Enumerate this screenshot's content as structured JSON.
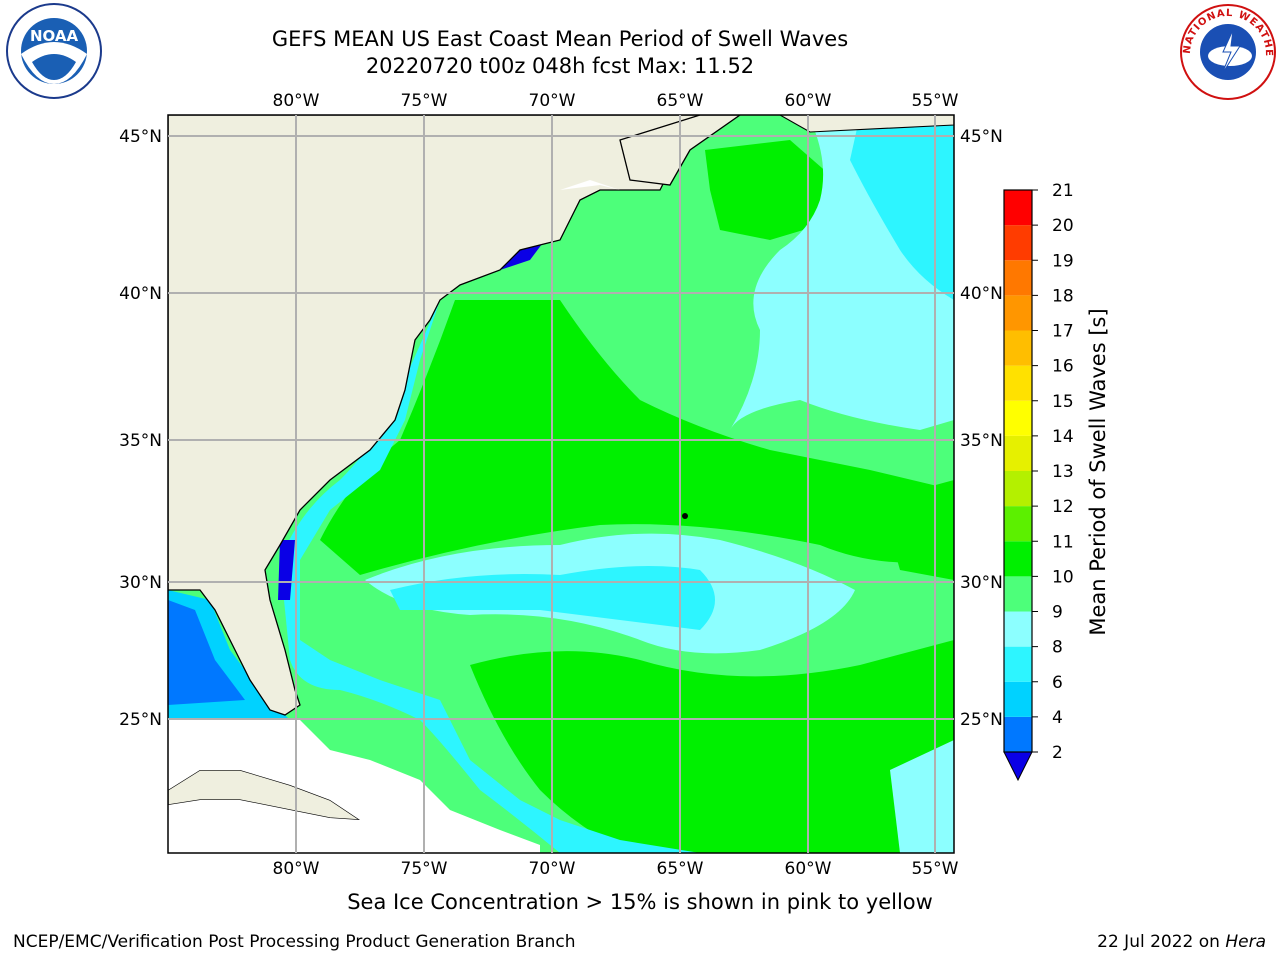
{
  "title_line1": "GEFS MEAN US East Coast Mean Period of Swell Waves",
  "title_line2": "20220720 t00z 048h fcst   Max: 11.52",
  "logos": {
    "left": {
      "icon": "noaa-logo",
      "text": "NOAA"
    },
    "right": {
      "icon": "nws-logo",
      "text": "NATIONAL WEATHER SERVICE"
    }
  },
  "map": {
    "lon_labels": [
      "80°W",
      "75°W",
      "70°W",
      "65°W",
      "60°W",
      "55°W"
    ],
    "lat_labels": [
      "45°N",
      "40°N",
      "35°N",
      "30°N",
      "25°N"
    ],
    "land_color": "#efefdf",
    "grid_color": "#b0b0b0"
  },
  "colorbar": {
    "label": "Mean Period of Swell Waves [s]",
    "ticks": [
      "2",
      "4",
      "6",
      "8",
      "9",
      "10",
      "11",
      "12",
      "13",
      "14",
      "15",
      "16",
      "17",
      "18",
      "19",
      "20",
      "21"
    ],
    "colors": [
      "#0a00e6",
      "#0078ff",
      "#00d2ff",
      "#2df5ff",
      "#8cffff",
      "#4dff7a",
      "#00f000",
      "#5cf000",
      "#b4f000",
      "#e6f000",
      "#ffff00",
      "#ffe100",
      "#ffbe00",
      "#ff9600",
      "#ff7800",
      "#ff3c00",
      "#ff0000"
    ],
    "under_color": "#0a00e6"
  },
  "footer_note": "Sea Ice Concentration > 15% is shown in pink to yellow",
  "credit_left": "NCEP/EMC/Verification Post Processing Product Generation Branch",
  "credit_right_date": "22 Jul 2022 on ",
  "credit_right_host": "Hera"
}
